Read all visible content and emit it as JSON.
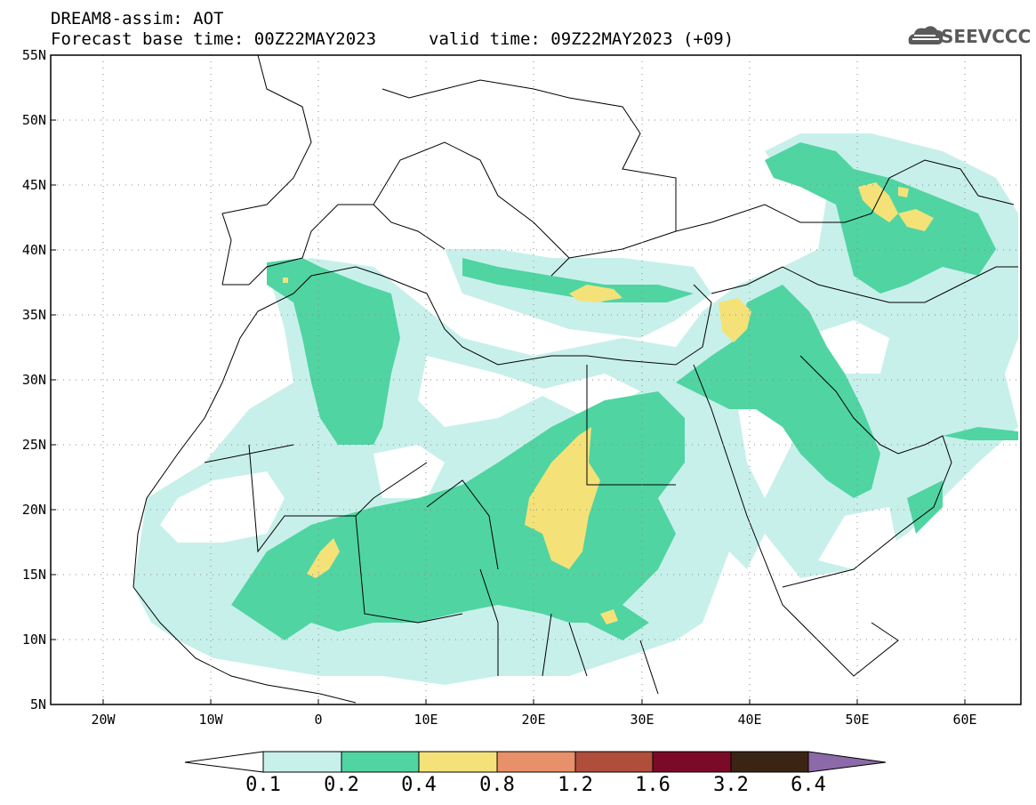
{
  "title": {
    "line1": "DREAM8-assim: AOT",
    "line2": "Forecast base time: 00Z22MAY2023",
    "valid": "valid time: 09Z22MAY2023 (+09)"
  },
  "logo": {
    "text": "SEEVCCC",
    "icon": "cloud-icon"
  },
  "map": {
    "lat_labels": [
      "55N",
      "50N",
      "45N",
      "40N",
      "35N",
      "30N",
      "25N",
      "20N",
      "15N",
      "10N",
      "5N"
    ],
    "lon_labels": [
      "20W",
      "10W",
      "0",
      "10E",
      "20E",
      "30E",
      "40E",
      "50E",
      "60E"
    ],
    "extent": {
      "lon": [
        -25,
        65
      ],
      "lat": [
        5,
        55
      ]
    },
    "grid": "dotted"
  },
  "colorbar": {
    "levels": [
      "0.1",
      "0.2",
      "0.4",
      "0.8",
      "1.2",
      "1.6",
      "3.2",
      "6.4"
    ],
    "colors": [
      "#c8f0eb",
      "#50d4a2",
      "#f4e279",
      "#e8906a",
      "#b04e3c",
      "#7a0a28",
      "#3c2414",
      "#8c69a8"
    ],
    "extend_low_color": "#ffffff"
  }
}
